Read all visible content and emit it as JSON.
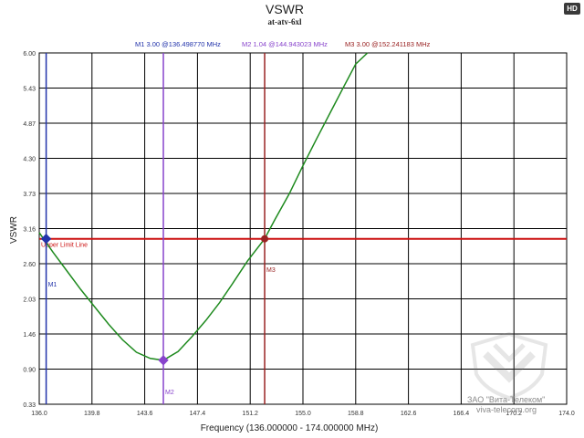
{
  "badge": "HD",
  "watermark": {
    "line1": "ЗАО \"Вита-Телеком\"",
    "line2": "viva-telecom.org"
  },
  "chart_data": {
    "type": "line",
    "title": "VSWR",
    "subtitle": "at-atv-6xl",
    "xlabel": "Frequency (136.000000 - 174.000000 MHz)",
    "ylabel": "VSWR",
    "xlim": [
      136.0,
      174.0
    ],
    "ylim": [
      0.33,
      6.0
    ],
    "xticks": [
      "136.0",
      "139.8",
      "143.6",
      "147.4",
      "151.2",
      "155.0",
      "158.8",
      "162.6",
      "166.4",
      "170.2",
      "174.0"
    ],
    "yticks": [
      "0.33",
      "0.90",
      "1.46",
      "2.03",
      "2.60",
      "3.16",
      "3.73",
      "4.30",
      "4.87",
      "5.43",
      "6.00"
    ],
    "grid": true,
    "series": [
      {
        "color": "#1e8a1e",
        "x": [
          136.0,
          137.0,
          138.0,
          139.0,
          140.0,
          141.0,
          142.0,
          143.0,
          144.0,
          144.94,
          146.0,
          147.0,
          148.0,
          149.0,
          150.0,
          151.0,
          152.24,
          153.0,
          154.0,
          155.0,
          156.0,
          157.0,
          158.0,
          158.8,
          159.65
        ],
        "y": [
          3.1,
          2.78,
          2.48,
          2.18,
          1.9,
          1.62,
          1.37,
          1.17,
          1.07,
          1.04,
          1.18,
          1.42,
          1.68,
          1.97,
          2.3,
          2.64,
          3.0,
          3.32,
          3.72,
          4.18,
          4.62,
          5.05,
          5.48,
          5.82,
          6.0
        ]
      }
    ],
    "limit_line": {
      "label": "Upper Limit Line",
      "value": 3.0,
      "color": "#cc1111"
    },
    "markers": [
      {
        "name": "M1",
        "x": 136.49877,
        "y": 3.0,
        "color": "#2233aa",
        "readout": "M1   3.00 @136.498770 MHz"
      },
      {
        "name": "M2",
        "x": 144.943023,
        "y": 1.04,
        "color": "#8844cc",
        "readout": "M2   1.04 @144.943023 MHz"
      },
      {
        "name": "M3",
        "x": 152.241183,
        "y": 3.0,
        "color": "#992222",
        "readout": "M3   3.00 @152.241183 MHz"
      }
    ]
  }
}
